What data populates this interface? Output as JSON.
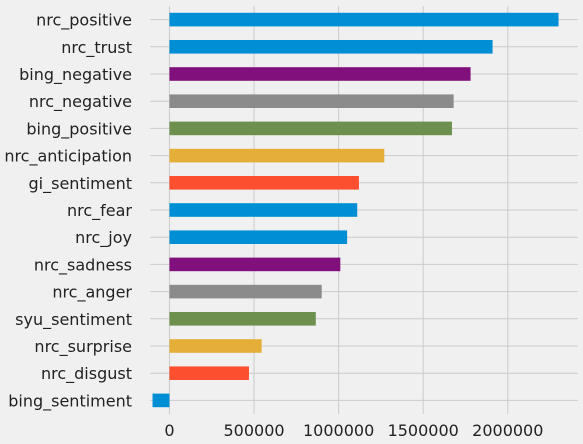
{
  "chart_data": {
    "type": "bar",
    "orientation": "horizontal",
    "style": "fivethirtyeight",
    "grid": true,
    "categories": [
      "nrc_positive",
      "nrc_trust",
      "bing_negative",
      "nrc_negative",
      "bing_positive",
      "nrc_anticipation",
      "gi_sentiment",
      "nrc_fear",
      "nrc_joy",
      "nrc_sadness",
      "nrc_anger",
      "syu_sentiment",
      "nrc_surprise",
      "nrc_disgust",
      "bing_sentiment"
    ],
    "values": [
      2300000,
      1910000,
      1780000,
      1680000,
      1670000,
      1270000,
      1120000,
      1110000,
      1050000,
      1010000,
      900000,
      865000,
      545000,
      470000,
      -100000
    ],
    "colors": [
      "#008fd5",
      "#008fd5",
      "#810f7c",
      "#8b8b8b",
      "#6d904f",
      "#e5ae38",
      "#fc4f30",
      "#008fd5",
      "#008fd5",
      "#810f7c",
      "#8b8b8b",
      "#6d904f",
      "#e5ae38",
      "#fc4f30",
      "#008fd5"
    ],
    "xlim": [
      -115000,
      2415000
    ],
    "xticks": [
      0,
      500000,
      1000000,
      1500000,
      2000000
    ],
    "xtick_labels": [
      "0",
      "500000",
      "1000000",
      "1500000",
      "2000000"
    ],
    "title": "",
    "xlabel": "",
    "ylabel": ""
  }
}
